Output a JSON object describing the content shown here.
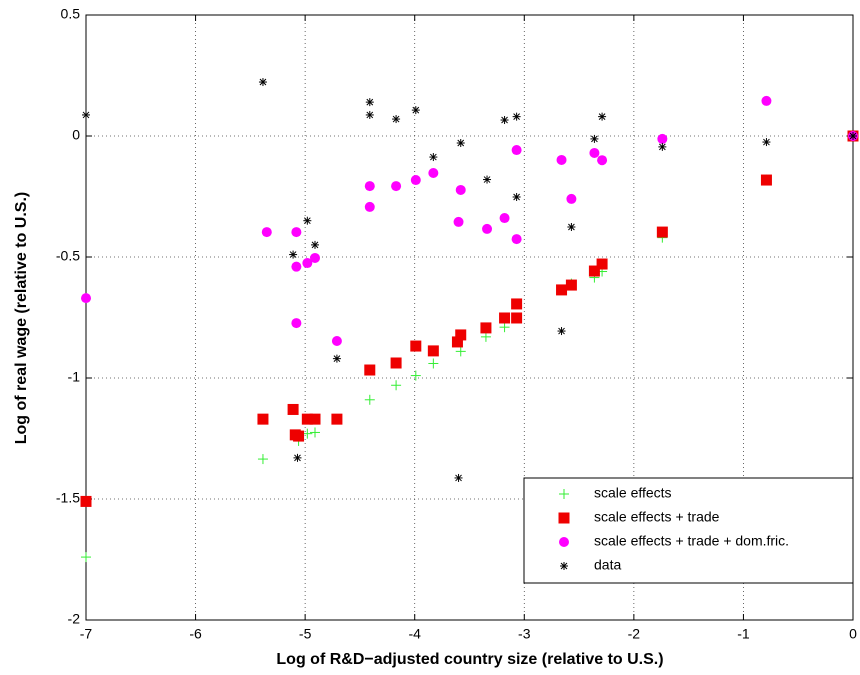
{
  "chart_data": {
    "type": "scatter",
    "x_label": "Log of R&D−adjusted country size (relative to U.S.)",
    "y_label": "Log of real wage (relative to U.S.)",
    "xlim": [
      -7,
      0
    ],
    "ylim": [
      -2,
      0.5
    ],
    "xticks": [
      -7,
      -6,
      -5,
      -4,
      -3,
      -2,
      -1,
      0
    ],
    "yticks": [
      -2,
      -1.5,
      -1,
      -0.5,
      0,
      0.5
    ],
    "grid": true,
    "legend_position": "lower right",
    "series": [
      {
        "name": "scale effects",
        "color": "#33ee33",
        "marker": "plus",
        "x": [
          -7,
          -5.385,
          -5.06,
          -5.06,
          -4.98,
          -4.91,
          -4.41,
          -4.17,
          -3.99,
          -3.83,
          -3.58,
          -3.35,
          -3.18,
          -3.07,
          -2.66,
          -2.57,
          -2.36,
          -2.29,
          -1.74,
          -0.79,
          0
        ],
        "y": [
          -1.74,
          -1.335,
          -1.26,
          -1.245,
          -1.23,
          -1.225,
          -1.09,
          -1.03,
          -0.99,
          -0.94,
          -0.89,
          -0.83,
          -0.79,
          -0.75,
          -0.635,
          -0.61,
          -0.585,
          -0.56,
          -0.42,
          -0.18,
          0
        ]
      },
      {
        "name": "scale effects + trade",
        "color": "#ee0000",
        "marker": "square",
        "x": [
          -7,
          -5.385,
          -5.11,
          -5.09,
          -5.06,
          -4.98,
          -4.91,
          -4.71,
          -4.41,
          -4.17,
          -3.99,
          -3.83,
          -3.61,
          -3.58,
          -3.35,
          -3.18,
          -3.07,
          -3.07,
          -2.66,
          -2.57,
          -2.36,
          -2.29,
          -1.74,
          -0.79,
          0
        ],
        "y": [
          -1.51,
          -1.17,
          -1.13,
          -1.235,
          -1.24,
          -1.17,
          -1.17,
          -1.17,
          -0.967,
          -0.938,
          -0.868,
          -0.888,
          -0.851,
          -0.822,
          -0.793,
          -0.752,
          -0.752,
          -0.694,
          -0.636,
          -0.616,
          -0.558,
          -0.529,
          -0.397,
          -0.182,
          0
        ]
      },
      {
        "name": "scale effects + trade + dom.fric.",
        "color": "#ff00ff",
        "marker": "circle",
        "x": [
          -7,
          -5.35,
          -5.08,
          -5.08,
          -5.08,
          -4.98,
          -4.91,
          -4.71,
          -4.41,
          -4.41,
          -4.17,
          -3.99,
          -3.83,
          -3.58,
          -3.6,
          -3.34,
          -3.18,
          -3.07,
          -3.07,
          -2.66,
          -2.57,
          -2.36,
          -2.29,
          -1.74,
          -0.79,
          0
        ],
        "y": [
          -0.67,
          -0.397,
          -0.54,
          -0.397,
          -0.773,
          -0.525,
          -0.504,
          -0.847,
          -0.207,
          -0.293,
          -0.207,
          -0.182,
          -0.153,
          -0.223,
          -0.355,
          -0.384,
          -0.339,
          -0.058,
          -0.426,
          -0.099,
          -0.26,
          -0.07,
          -0.1,
          -0.012,
          0.145,
          0
        ]
      },
      {
        "name": "data",
        "color": "#000000",
        "marker": "asterisk",
        "x": [
          -7,
          -5.385,
          -5.11,
          -5.07,
          -4.98,
          -4.91,
          -4.71,
          -4.41,
          -4.41,
          -4.17,
          -3.99,
          -3.83,
          -3.58,
          -3.6,
          -3.34,
          -3.18,
          -3.07,
          -3.07,
          -2.66,
          -2.57,
          -2.36,
          -2.29,
          -1.74,
          -0.79,
          0
        ],
        "y": [
          0.087,
          0.223,
          -0.49,
          -1.33,
          -0.35,
          -0.45,
          -0.92,
          0.14,
          0.087,
          0.07,
          0.107,
          -0.087,
          -0.029,
          -1.413,
          -0.18,
          0.066,
          0.08,
          -0.252,
          -0.806,
          -0.376,
          -0.012,
          0.08,
          -0.045,
          -0.025,
          0
        ]
      }
    ]
  }
}
